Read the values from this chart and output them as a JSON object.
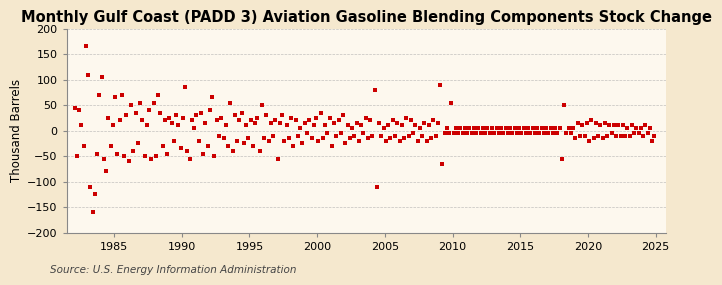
{
  "title": "Monthly Gulf Coast (PADD 3) Aviation Gasoline Blending Components Stock Change",
  "ylabel": "Thousand Barrels",
  "source": "Source: U.S. Energy Information Administration",
  "xlim": [
    1981.5,
    2025.8
  ],
  "ylim": [
    -200,
    200
  ],
  "yticks": [
    -200,
    -150,
    -100,
    -50,
    0,
    50,
    100,
    150,
    200
  ],
  "xticks": [
    1985,
    1990,
    1995,
    2000,
    2005,
    2010,
    2015,
    2020,
    2025
  ],
  "marker_color": "#cc0000",
  "fig_bg_color": "#f5e8ce",
  "plot_bg_color": "#fdf8ee",
  "grid_color": "#aaaaaa",
  "title_fontsize": 10.5,
  "axis_fontsize": 8.5,
  "tick_fontsize": 8,
  "source_fontsize": 7.5,
  "data": [
    [
      1982.083,
      45
    ],
    [
      1982.25,
      -50
    ],
    [
      1982.417,
      40
    ],
    [
      1982.583,
      10
    ],
    [
      1982.75,
      -30
    ],
    [
      1982.917,
      165
    ],
    [
      1983.083,
      110
    ],
    [
      1983.25,
      -110
    ],
    [
      1983.417,
      -160
    ],
    [
      1983.583,
      -125
    ],
    [
      1983.75,
      -45
    ],
    [
      1983.917,
      70
    ],
    [
      1984.083,
      105
    ],
    [
      1984.25,
      -55
    ],
    [
      1984.417,
      -80
    ],
    [
      1984.583,
      25
    ],
    [
      1984.75,
      -30
    ],
    [
      1984.917,
      10
    ],
    [
      1985.083,
      65
    ],
    [
      1985.25,
      -45
    ],
    [
      1985.417,
      20
    ],
    [
      1985.583,
      70
    ],
    [
      1985.75,
      -50
    ],
    [
      1985.917,
      30
    ],
    [
      1986.083,
      -60
    ],
    [
      1986.25,
      50
    ],
    [
      1986.417,
      -40
    ],
    [
      1986.583,
      35
    ],
    [
      1986.75,
      -25
    ],
    [
      1986.917,
      55
    ],
    [
      1987.083,
      20
    ],
    [
      1987.25,
      -50
    ],
    [
      1987.417,
      10
    ],
    [
      1987.583,
      40
    ],
    [
      1987.75,
      -55
    ],
    [
      1987.917,
      55
    ],
    [
      1988.083,
      -50
    ],
    [
      1988.25,
      70
    ],
    [
      1988.417,
      35
    ],
    [
      1988.583,
      -30
    ],
    [
      1988.75,
      20
    ],
    [
      1988.917,
      -45
    ],
    [
      1989.083,
      25
    ],
    [
      1989.25,
      15
    ],
    [
      1989.417,
      -20
    ],
    [
      1989.583,
      30
    ],
    [
      1989.75,
      10
    ],
    [
      1989.917,
      -35
    ],
    [
      1990.083,
      25
    ],
    [
      1990.25,
      85
    ],
    [
      1990.417,
      -40
    ],
    [
      1990.583,
      -55
    ],
    [
      1990.75,
      20
    ],
    [
      1990.917,
      5
    ],
    [
      1991.083,
      30
    ],
    [
      1991.25,
      -20
    ],
    [
      1991.417,
      35
    ],
    [
      1991.583,
      -45
    ],
    [
      1991.75,
      15
    ],
    [
      1991.917,
      -30
    ],
    [
      1992.083,
      40
    ],
    [
      1992.25,
      65
    ],
    [
      1992.417,
      -50
    ],
    [
      1992.583,
      20
    ],
    [
      1992.75,
      -10
    ],
    [
      1992.917,
      25
    ],
    [
      1993.083,
      -15
    ],
    [
      1993.25,
      10
    ],
    [
      1993.417,
      -30
    ],
    [
      1993.583,
      55
    ],
    [
      1993.75,
      -40
    ],
    [
      1993.917,
      30
    ],
    [
      1994.083,
      -20
    ],
    [
      1994.25,
      20
    ],
    [
      1994.417,
      35
    ],
    [
      1994.583,
      -25
    ],
    [
      1994.75,
      10
    ],
    [
      1994.917,
      -15
    ],
    [
      1995.083,
      20
    ],
    [
      1995.25,
      -30
    ],
    [
      1995.417,
      15
    ],
    [
      1995.583,
      25
    ],
    [
      1995.75,
      -40
    ],
    [
      1995.917,
      50
    ],
    [
      1996.083,
      -15
    ],
    [
      1996.25,
      30
    ],
    [
      1996.417,
      -20
    ],
    [
      1996.583,
      15
    ],
    [
      1996.75,
      -10
    ],
    [
      1996.917,
      20
    ],
    [
      1997.083,
      -55
    ],
    [
      1997.25,
      15
    ],
    [
      1997.417,
      30
    ],
    [
      1997.583,
      -20
    ],
    [
      1997.75,
      10
    ],
    [
      1997.917,
      -15
    ],
    [
      1998.083,
      25
    ],
    [
      1998.25,
      -30
    ],
    [
      1998.417,
      20
    ],
    [
      1998.583,
      -10
    ],
    [
      1998.75,
      5
    ],
    [
      1998.917,
      -25
    ],
    [
      1999.083,
      15
    ],
    [
      1999.25,
      -5
    ],
    [
      1999.417,
      20
    ],
    [
      1999.583,
      -15
    ],
    [
      1999.75,
      10
    ],
    [
      1999.917,
      25
    ],
    [
      2000.083,
      -20
    ],
    [
      2000.25,
      35
    ],
    [
      2000.417,
      -15
    ],
    [
      2000.583,
      10
    ],
    [
      2000.75,
      -5
    ],
    [
      2000.917,
      25
    ],
    [
      2001.083,
      -30
    ],
    [
      2001.25,
      15
    ],
    [
      2001.417,
      -10
    ],
    [
      2001.583,
      20
    ],
    [
      2001.75,
      -5
    ],
    [
      2001.917,
      30
    ],
    [
      2002.083,
      -25
    ],
    [
      2002.25,
      10
    ],
    [
      2002.417,
      -15
    ],
    [
      2002.583,
      5
    ],
    [
      2002.75,
      -10
    ],
    [
      2002.917,
      15
    ],
    [
      2003.083,
      -20
    ],
    [
      2003.25,
      10
    ],
    [
      2003.417,
      -5
    ],
    [
      2003.583,
      25
    ],
    [
      2003.75,
      -15
    ],
    [
      2003.917,
      20
    ],
    [
      2004.083,
      -10
    ],
    [
      2004.25,
      80
    ],
    [
      2004.417,
      -110
    ],
    [
      2004.583,
      15
    ],
    [
      2004.75,
      -10
    ],
    [
      2004.917,
      5
    ],
    [
      2005.083,
      -20
    ],
    [
      2005.25,
      10
    ],
    [
      2005.417,
      -15
    ],
    [
      2005.583,
      20
    ],
    [
      2005.75,
      -10
    ],
    [
      2005.917,
      15
    ],
    [
      2006.083,
      -20
    ],
    [
      2006.25,
      10
    ],
    [
      2006.417,
      -15
    ],
    [
      2006.583,
      25
    ],
    [
      2006.75,
      -10
    ],
    [
      2006.917,
      20
    ],
    [
      2007.083,
      -5
    ],
    [
      2007.25,
      10
    ],
    [
      2007.417,
      -20
    ],
    [
      2007.583,
      5
    ],
    [
      2007.75,
      -10
    ],
    [
      2007.917,
      15
    ],
    [
      2008.083,
      -20
    ],
    [
      2008.25,
      10
    ],
    [
      2008.417,
      -15
    ],
    [
      2008.583,
      20
    ],
    [
      2008.75,
      -10
    ],
    [
      2008.917,
      15
    ],
    [
      2009.083,
      90
    ],
    [
      2009.25,
      -65
    ],
    [
      2009.417,
      -5
    ],
    [
      2009.583,
      5
    ],
    [
      2009.75,
      -5
    ],
    [
      2009.917,
      55
    ],
    [
      2010.083,
      -5
    ],
    [
      2010.25,
      5
    ],
    [
      2010.417,
      -5
    ],
    [
      2010.583,
      5
    ],
    [
      2010.75,
      -5
    ],
    [
      2010.917,
      5
    ],
    [
      2011.083,
      -5
    ],
    [
      2011.25,
      5
    ],
    [
      2011.417,
      -5
    ],
    [
      2011.583,
      5
    ],
    [
      2011.75,
      -5
    ],
    [
      2011.917,
      5
    ],
    [
      2012.083,
      -5
    ],
    [
      2012.25,
      5
    ],
    [
      2012.417,
      -5
    ],
    [
      2012.583,
      5
    ],
    [
      2012.75,
      -5
    ],
    [
      2012.917,
      5
    ],
    [
      2013.083,
      -5
    ],
    [
      2013.25,
      5
    ],
    [
      2013.417,
      -5
    ],
    [
      2013.583,
      5
    ],
    [
      2013.75,
      -5
    ],
    [
      2013.917,
      5
    ],
    [
      2014.083,
      -5
    ],
    [
      2014.25,
      5
    ],
    [
      2014.417,
      -5
    ],
    [
      2014.583,
      5
    ],
    [
      2014.75,
      -5
    ],
    [
      2014.917,
      5
    ],
    [
      2015.083,
      -5
    ],
    [
      2015.25,
      5
    ],
    [
      2015.417,
      -5
    ],
    [
      2015.583,
      5
    ],
    [
      2015.75,
      -5
    ],
    [
      2015.917,
      5
    ],
    [
      2016.083,
      -5
    ],
    [
      2016.25,
      5
    ],
    [
      2016.417,
      -5
    ],
    [
      2016.583,
      5
    ],
    [
      2016.75,
      -5
    ],
    [
      2016.917,
      5
    ],
    [
      2017.083,
      -5
    ],
    [
      2017.25,
      5
    ],
    [
      2017.417,
      -5
    ],
    [
      2017.583,
      5
    ],
    [
      2017.75,
      -5
    ],
    [
      2017.917,
      5
    ],
    [
      2018.083,
      -55
    ],
    [
      2018.25,
      50
    ],
    [
      2018.417,
      -5
    ],
    [
      2018.583,
      5
    ],
    [
      2018.75,
      -5
    ],
    [
      2018.917,
      5
    ],
    [
      2019.083,
      -15
    ],
    [
      2019.25,
      15
    ],
    [
      2019.417,
      -10
    ],
    [
      2019.583,
      10
    ],
    [
      2019.75,
      -10
    ],
    [
      2019.917,
      15
    ],
    [
      2020.083,
      -20
    ],
    [
      2020.25,
      20
    ],
    [
      2020.417,
      -15
    ],
    [
      2020.583,
      15
    ],
    [
      2020.75,
      -10
    ],
    [
      2020.917,
      10
    ],
    [
      2021.083,
      -15
    ],
    [
      2021.25,
      15
    ],
    [
      2021.417,
      -10
    ],
    [
      2021.583,
      10
    ],
    [
      2021.75,
      -5
    ],
    [
      2021.917,
      10
    ],
    [
      2022.083,
      -10
    ],
    [
      2022.25,
      10
    ],
    [
      2022.417,
      -10
    ],
    [
      2022.583,
      10
    ],
    [
      2022.75,
      -10
    ],
    [
      2022.917,
      5
    ],
    [
      2023.083,
      -10
    ],
    [
      2023.25,
      10
    ],
    [
      2023.417,
      -5
    ],
    [
      2023.583,
      5
    ],
    [
      2023.75,
      -5
    ],
    [
      2023.917,
      5
    ],
    [
      2024.083,
      -10
    ],
    [
      2024.25,
      10
    ],
    [
      2024.417,
      -5
    ],
    [
      2024.583,
      5
    ],
    [
      2024.75,
      -20
    ],
    [
      2024.917,
      -10
    ]
  ]
}
